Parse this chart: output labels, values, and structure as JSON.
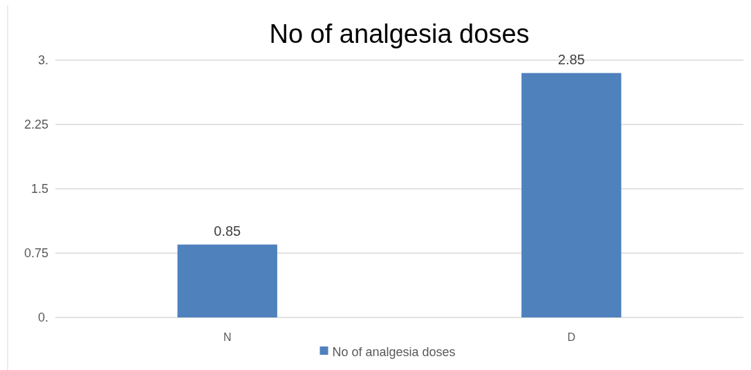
{
  "chart_data": {
    "type": "bar",
    "title": "No of analgesia doses",
    "categories": [
      "N",
      "D"
    ],
    "series": [
      {
        "name": "No of analgesia doses",
        "color": "#4f81bd",
        "values": [
          0.85,
          2.85
        ]
      }
    ],
    "ylim": [
      0,
      3
    ],
    "yticks": [
      {
        "value": 0,
        "label": "0."
      },
      0.75,
      1.5,
      2.25,
      {
        "value": 3,
        "label": "3."
      }
    ],
    "grid": "y",
    "legend": "bottom",
    "data_labels": true
  }
}
